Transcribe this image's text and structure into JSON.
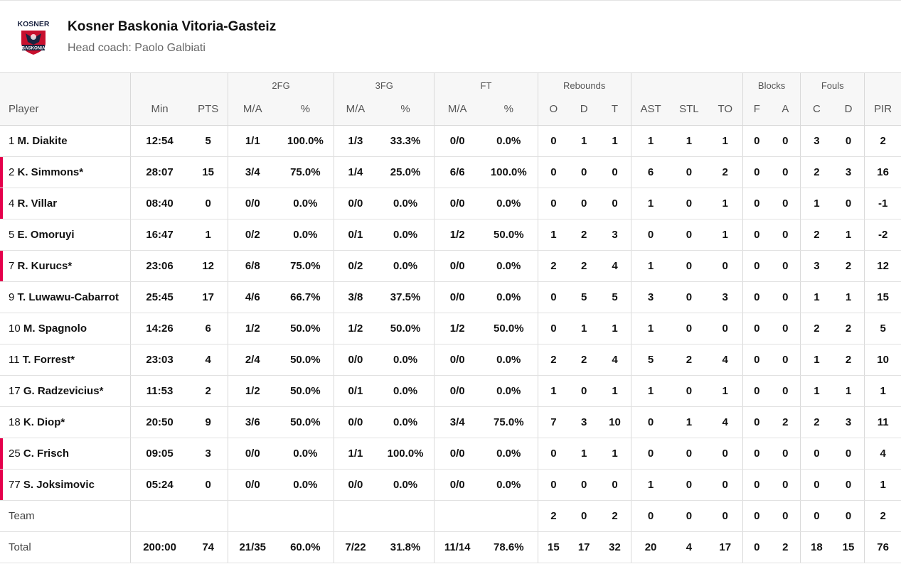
{
  "team": {
    "name": "Kosner Baskonia Vitoria-Gasteiz",
    "coach": "Head coach: Paolo Galbiati",
    "logo_top": "KOSNER",
    "logo_badge": "BASKONIA",
    "colors": {
      "accent": "#e5004b",
      "logo_red": "#c8102e",
      "logo_navy": "#1a2340"
    }
  },
  "groups": {
    "fg2": "2FG",
    "fg3": "3FG",
    "ft": "FT",
    "reb": "Rebounds",
    "blk": "Blocks",
    "fouls": "Fouls"
  },
  "columns": [
    "Player",
    "Min",
    "PTS",
    "M/A",
    "%",
    "M/A",
    "%",
    "M/A",
    "%",
    "O",
    "D",
    "T",
    "AST",
    "STL",
    "TO",
    "F",
    "A",
    "C",
    "D",
    "PIR"
  ],
  "rows": [
    {
      "num": "1",
      "name": "M. Diakite",
      "starter": false,
      "stats": [
        "12:54",
        "5",
        "1/1",
        "100.0%",
        "1/3",
        "33.3%",
        "0/0",
        "0.0%",
        "0",
        "1",
        "1",
        "1",
        "1",
        "1",
        "0",
        "0",
        "3",
        "0",
        "2"
      ]
    },
    {
      "num": "2",
      "name": "K. Simmons*",
      "starter": true,
      "stats": [
        "28:07",
        "15",
        "3/4",
        "75.0%",
        "1/4",
        "25.0%",
        "6/6",
        "100.0%",
        "0",
        "0",
        "0",
        "6",
        "0",
        "2",
        "0",
        "0",
        "2",
        "3",
        "16"
      ]
    },
    {
      "num": "4",
      "name": "R. Villar",
      "starter": true,
      "stats": [
        "08:40",
        "0",
        "0/0",
        "0.0%",
        "0/0",
        "0.0%",
        "0/0",
        "0.0%",
        "0",
        "0",
        "0",
        "1",
        "0",
        "1",
        "0",
        "0",
        "1",
        "0",
        "-1"
      ]
    },
    {
      "num": "5",
      "name": "E. Omoruyi",
      "starter": false,
      "stats": [
        "16:47",
        "1",
        "0/2",
        "0.0%",
        "0/1",
        "0.0%",
        "1/2",
        "50.0%",
        "1",
        "2",
        "3",
        "0",
        "0",
        "1",
        "0",
        "0",
        "2",
        "1",
        "-2"
      ]
    },
    {
      "num": "7",
      "name": "R. Kurucs*",
      "starter": true,
      "stats": [
        "23:06",
        "12",
        "6/8",
        "75.0%",
        "0/2",
        "0.0%",
        "0/0",
        "0.0%",
        "2",
        "2",
        "4",
        "1",
        "0",
        "0",
        "0",
        "0",
        "3",
        "2",
        "12"
      ]
    },
    {
      "num": "9",
      "name": "T. Luwawu-Cabarrot",
      "starter": false,
      "stats": [
        "25:45",
        "17",
        "4/6",
        "66.7%",
        "3/8",
        "37.5%",
        "0/0",
        "0.0%",
        "0",
        "5",
        "5",
        "3",
        "0",
        "3",
        "0",
        "0",
        "1",
        "1",
        "15"
      ]
    },
    {
      "num": "10",
      "name": "M. Spagnolo",
      "starter": false,
      "stats": [
        "14:26",
        "6",
        "1/2",
        "50.0%",
        "1/2",
        "50.0%",
        "1/2",
        "50.0%",
        "0",
        "1",
        "1",
        "1",
        "0",
        "0",
        "0",
        "0",
        "2",
        "2",
        "5"
      ]
    },
    {
      "num": "11",
      "name": "T. Forrest*",
      "starter": false,
      "stats": [
        "23:03",
        "4",
        "2/4",
        "50.0%",
        "0/0",
        "0.0%",
        "0/0",
        "0.0%",
        "2",
        "2",
        "4",
        "5",
        "2",
        "4",
        "0",
        "0",
        "1",
        "2",
        "10"
      ]
    },
    {
      "num": "17",
      "name": "G. Radzevicius*",
      "starter": false,
      "stats": [
        "11:53",
        "2",
        "1/2",
        "50.0%",
        "0/1",
        "0.0%",
        "0/0",
        "0.0%",
        "1",
        "0",
        "1",
        "1",
        "0",
        "1",
        "0",
        "0",
        "1",
        "1",
        "1"
      ]
    },
    {
      "num": "18",
      "name": "K. Diop*",
      "starter": false,
      "stats": [
        "20:50",
        "9",
        "3/6",
        "50.0%",
        "0/0",
        "0.0%",
        "3/4",
        "75.0%",
        "7",
        "3",
        "10",
        "0",
        "1",
        "4",
        "0",
        "2",
        "2",
        "3",
        "11"
      ]
    },
    {
      "num": "25",
      "name": "C. Frisch",
      "starter": true,
      "stats": [
        "09:05",
        "3",
        "0/0",
        "0.0%",
        "1/1",
        "100.0%",
        "0/0",
        "0.0%",
        "0",
        "1",
        "1",
        "0",
        "0",
        "0",
        "0",
        "0",
        "0",
        "0",
        "4"
      ]
    },
    {
      "num": "77",
      "name": "S. Joksimovic",
      "starter": true,
      "stats": [
        "05:24",
        "0",
        "0/0",
        "0.0%",
        "0/0",
        "0.0%",
        "0/0",
        "0.0%",
        "0",
        "0",
        "0",
        "1",
        "0",
        "0",
        "0",
        "0",
        "0",
        "0",
        "1"
      ]
    }
  ],
  "team_row": {
    "label": "Team",
    "stats": [
      "",
      "",
      "",
      "",
      "",
      "",
      "",
      "",
      "2",
      "0",
      "2",
      "0",
      "0",
      "0",
      "0",
      "0",
      "0",
      "0",
      "2"
    ]
  },
  "total_row": {
    "label": "Total",
    "stats": [
      "200:00",
      "74",
      "21/35",
      "60.0%",
      "7/22",
      "31.8%",
      "11/14",
      "78.6%",
      "15",
      "17",
      "32",
      "20",
      "4",
      "17",
      "0",
      "2",
      "18",
      "15",
      "76"
    ]
  }
}
